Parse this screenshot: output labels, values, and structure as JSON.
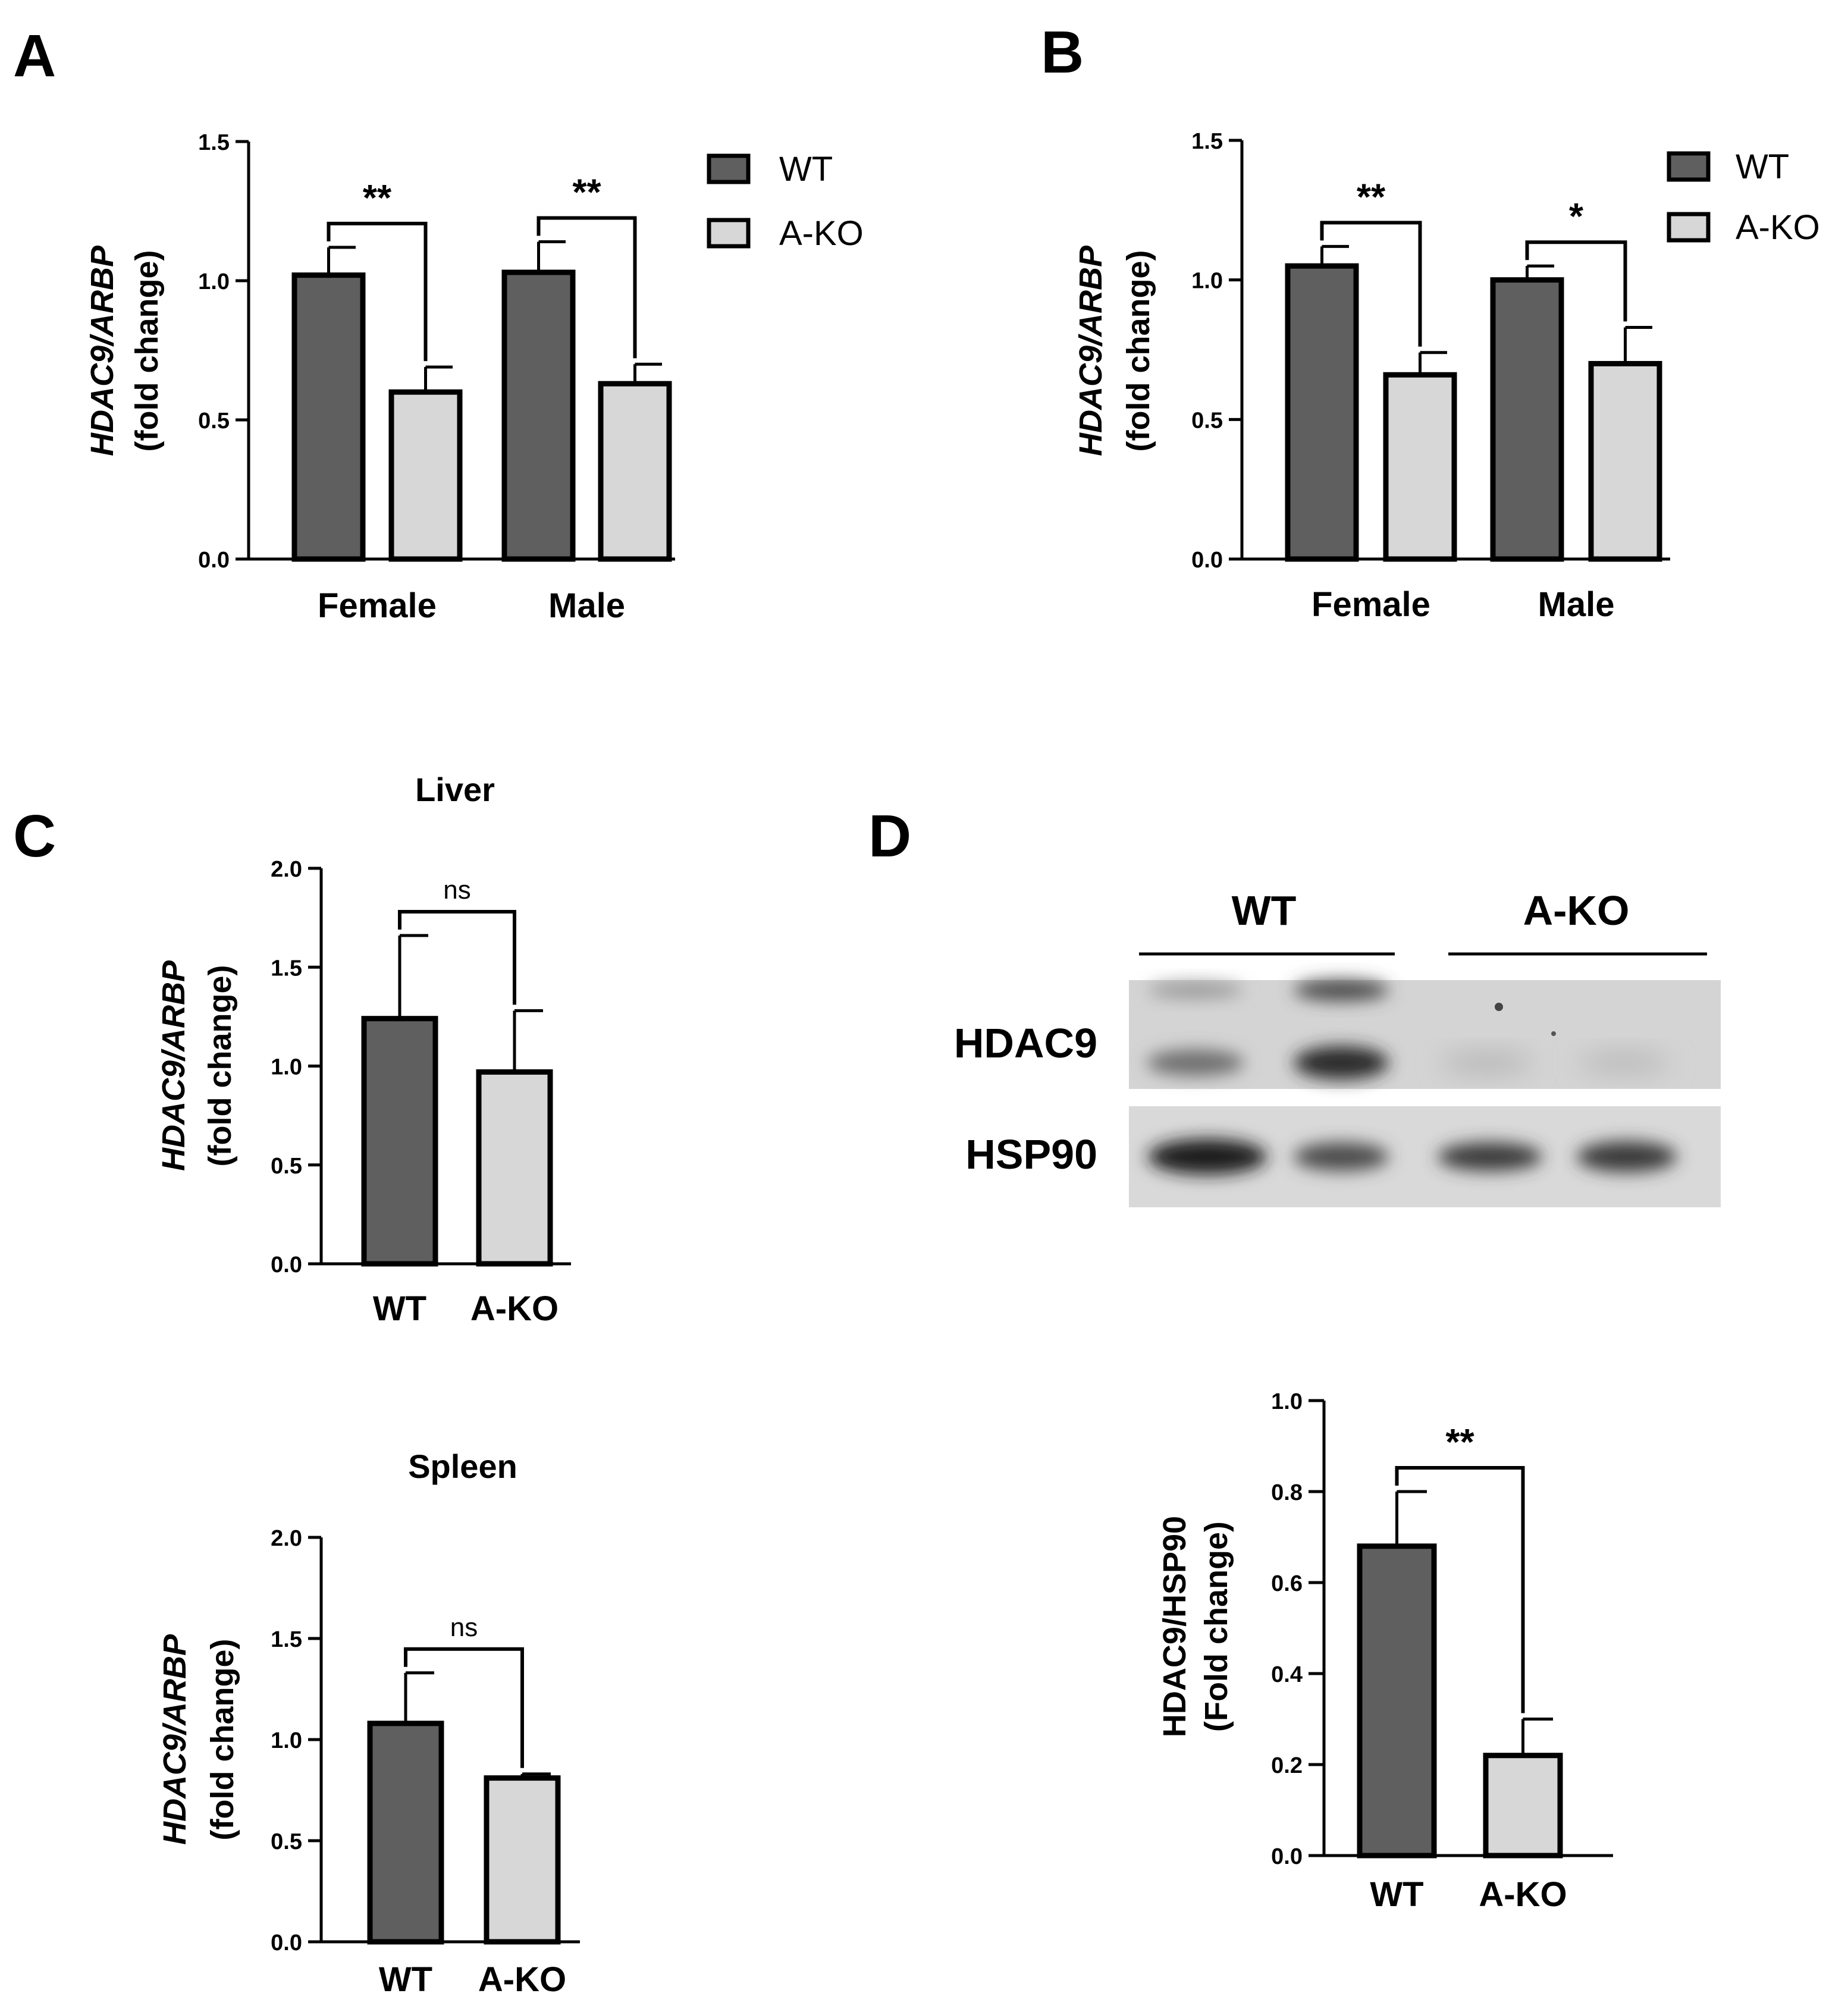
{
  "panels": {
    "A": "A",
    "B": "B",
    "C": "C",
    "D": "D"
  },
  "colors": {
    "wt": "#5f5f5f",
    "ako": "#d7d7d7"
  },
  "chart_data": [
    {
      "id": "A",
      "type": "bar",
      "categories": [
        "Female",
        "Male"
      ],
      "series": [
        {
          "name": "WT",
          "values": [
            1.02,
            1.03
          ],
          "errors": [
            0.1,
            0.11
          ]
        },
        {
          "name": "A-KO",
          "values": [
            0.6,
            0.63
          ],
          "errors": [
            0.09,
            0.07
          ]
        }
      ],
      "ylabel_italic": "HDAC9/ARBP",
      "ylabel": "(fold change)",
      "ylim": [
        0,
        1.5
      ],
      "yticks": [
        "0.0",
        "0.5",
        "1.0",
        "1.5"
      ],
      "significance": [
        "**",
        "**"
      ],
      "legend": [
        "WT",
        "A-KO"
      ],
      "legend_position": "right"
    },
    {
      "id": "B",
      "type": "bar",
      "categories": [
        "Female",
        "Male"
      ],
      "series": [
        {
          "name": "WT",
          "values": [
            1.05,
            1.0
          ],
          "errors": [
            0.07,
            0.05
          ]
        },
        {
          "name": "A-KO",
          "values": [
            0.66,
            0.7
          ],
          "errors": [
            0.08,
            0.13
          ]
        }
      ],
      "ylabel_italic": "HDAC9/ARBP",
      "ylabel": "(fold change)",
      "ylim": [
        0,
        1.5
      ],
      "yticks": [
        "0.0",
        "0.5",
        "1.0",
        "1.5"
      ],
      "significance": [
        "**",
        "*"
      ],
      "legend": [
        "WT",
        "A-KO"
      ],
      "legend_position": "right"
    },
    {
      "id": "C-liver",
      "type": "bar",
      "title": "Liver",
      "categories": [
        "WT",
        "A-KO"
      ],
      "values": [
        1.24,
        0.97
      ],
      "errors": [
        0.42,
        0.31
      ],
      "ylabel_italic": "HDAC9/ARBP",
      "ylabel": "(fold change)",
      "ylim": [
        0,
        2.0
      ],
      "yticks": [
        "0.0",
        "0.5",
        "1.0",
        "1.5",
        "2.0"
      ],
      "significance": "ns"
    },
    {
      "id": "C-spleen",
      "type": "bar",
      "title": "Spleen",
      "categories": [
        "WT",
        "A-KO"
      ],
      "values": [
        1.08,
        0.81
      ],
      "errors": [
        0.25,
        0.02
      ],
      "ylabel_italic": "HDAC9/ARBP",
      "ylabel": "(fold change)",
      "ylim": [
        0,
        2.0
      ],
      "yticks": [
        "0.0",
        "0.5",
        "1.0",
        "1.5",
        "2.0"
      ],
      "significance": "ns"
    },
    {
      "id": "D-quant",
      "type": "bar",
      "categories": [
        "WT",
        "A-KO"
      ],
      "values": [
        0.68,
        0.22
      ],
      "errors": [
        0.12,
        0.08
      ],
      "ylabel_line1": "HDAC9/HSP90",
      "ylabel": "(Fold change)",
      "ylim": [
        0,
        1.0
      ],
      "yticks": [
        "0.0",
        "0.2",
        "0.4",
        "0.6",
        "0.8",
        "1.0"
      ],
      "significance": "**"
    }
  ],
  "blot": {
    "group_labels": [
      "WT",
      "A-KO"
    ],
    "row_labels": [
      "HDAC9",
      "HSP90"
    ]
  }
}
